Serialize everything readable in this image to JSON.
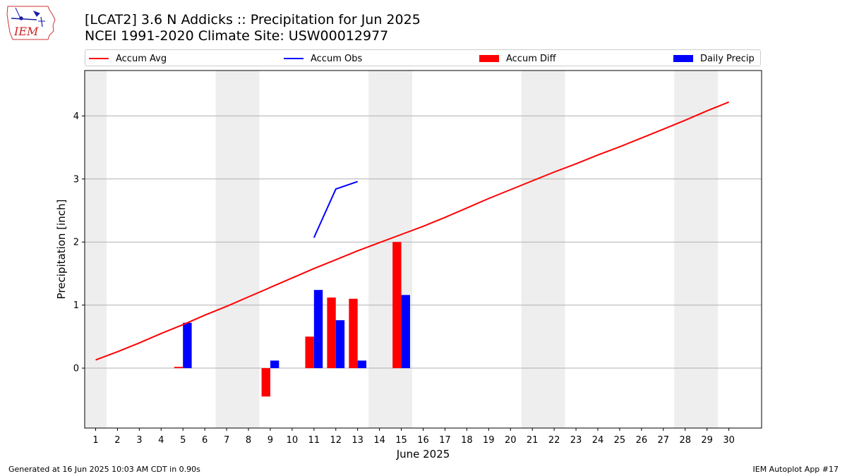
{
  "logo": {
    "text": "IEM",
    "icon": "iem-iowa-logo-icon"
  },
  "title_line1": "[LCAT2] 3.6 N Addicks :: Precipitation for Jun 2025",
  "title_line2": "NCEI 1991-2020 Climate Site: USW00012977",
  "legend": {
    "accum_avg": "Accum Avg",
    "accum_obs": "Accum Obs",
    "accum_diff": "Accum Diff",
    "daily_precip": "Daily Precip"
  },
  "colors": {
    "avg": "#ff0000",
    "obs": "#0000ff",
    "diff": "#ff0000",
    "daily": "#0000ff",
    "weekend": "#eeeeee",
    "grid": "#b0b0b0"
  },
  "footer_left": "Generated at 16 Jun 2025 10:03 AM CDT in 0.90s",
  "footer_right": "IEM Autoplot App #17",
  "chart_data": {
    "type": "bar",
    "xlabel": "June 2025",
    "ylabel": "Precipitation [inch]",
    "xlim": [
      0.5,
      31.5
    ],
    "ylim": [
      -0.95,
      4.72
    ],
    "yticks": [
      0,
      1,
      2,
      3,
      4
    ],
    "xticks": [
      1,
      2,
      3,
      4,
      5,
      6,
      7,
      8,
      9,
      10,
      11,
      12,
      13,
      14,
      15,
      16,
      17,
      18,
      19,
      20,
      21,
      22,
      23,
      24,
      25,
      26,
      27,
      28,
      29,
      30
    ],
    "grid": "y",
    "legend_position": "top",
    "weekend_shading": [
      [
        0.5,
        1.5
      ],
      [
        6.5,
        8.5
      ],
      [
        13.5,
        15.5
      ],
      [
        20.5,
        22.5
      ],
      [
        27.5,
        29.5
      ]
    ],
    "series": [
      {
        "name": "Accum Avg",
        "kind": "line",
        "x": [
          1,
          2,
          3,
          4,
          5,
          6,
          7,
          8,
          9,
          10,
          11,
          12,
          13,
          14,
          15,
          16,
          17,
          18,
          19,
          20,
          21,
          22,
          23,
          24,
          25,
          26,
          27,
          28,
          29,
          30
        ],
        "values": [
          0.13,
          0.26,
          0.4,
          0.55,
          0.69,
          0.84,
          0.98,
          1.13,
          1.28,
          1.43,
          1.58,
          1.72,
          1.86,
          1.99,
          2.12,
          2.25,
          2.39,
          2.54,
          2.69,
          2.83,
          2.97,
          3.11,
          3.24,
          3.38,
          3.51,
          3.65,
          3.79,
          3.93,
          4.08,
          4.22
        ]
      },
      {
        "name": "Accum Obs",
        "kind": "line",
        "x": [
          11,
          12,
          13
        ],
        "values": [
          2.07,
          2.84,
          2.96
        ]
      },
      {
        "name": "Accum Diff",
        "kind": "bar",
        "x": [
          5,
          9,
          11,
          12,
          13,
          15
        ],
        "values": [
          0.02,
          -0.45,
          0.5,
          1.12,
          1.1,
          2.0
        ]
      },
      {
        "name": "Daily Precip",
        "kind": "bar",
        "x": [
          5,
          9,
          11,
          12,
          13,
          15
        ],
        "values": [
          0.72,
          0.12,
          1.24,
          0.76,
          0.12,
          1.16
        ]
      }
    ]
  }
}
